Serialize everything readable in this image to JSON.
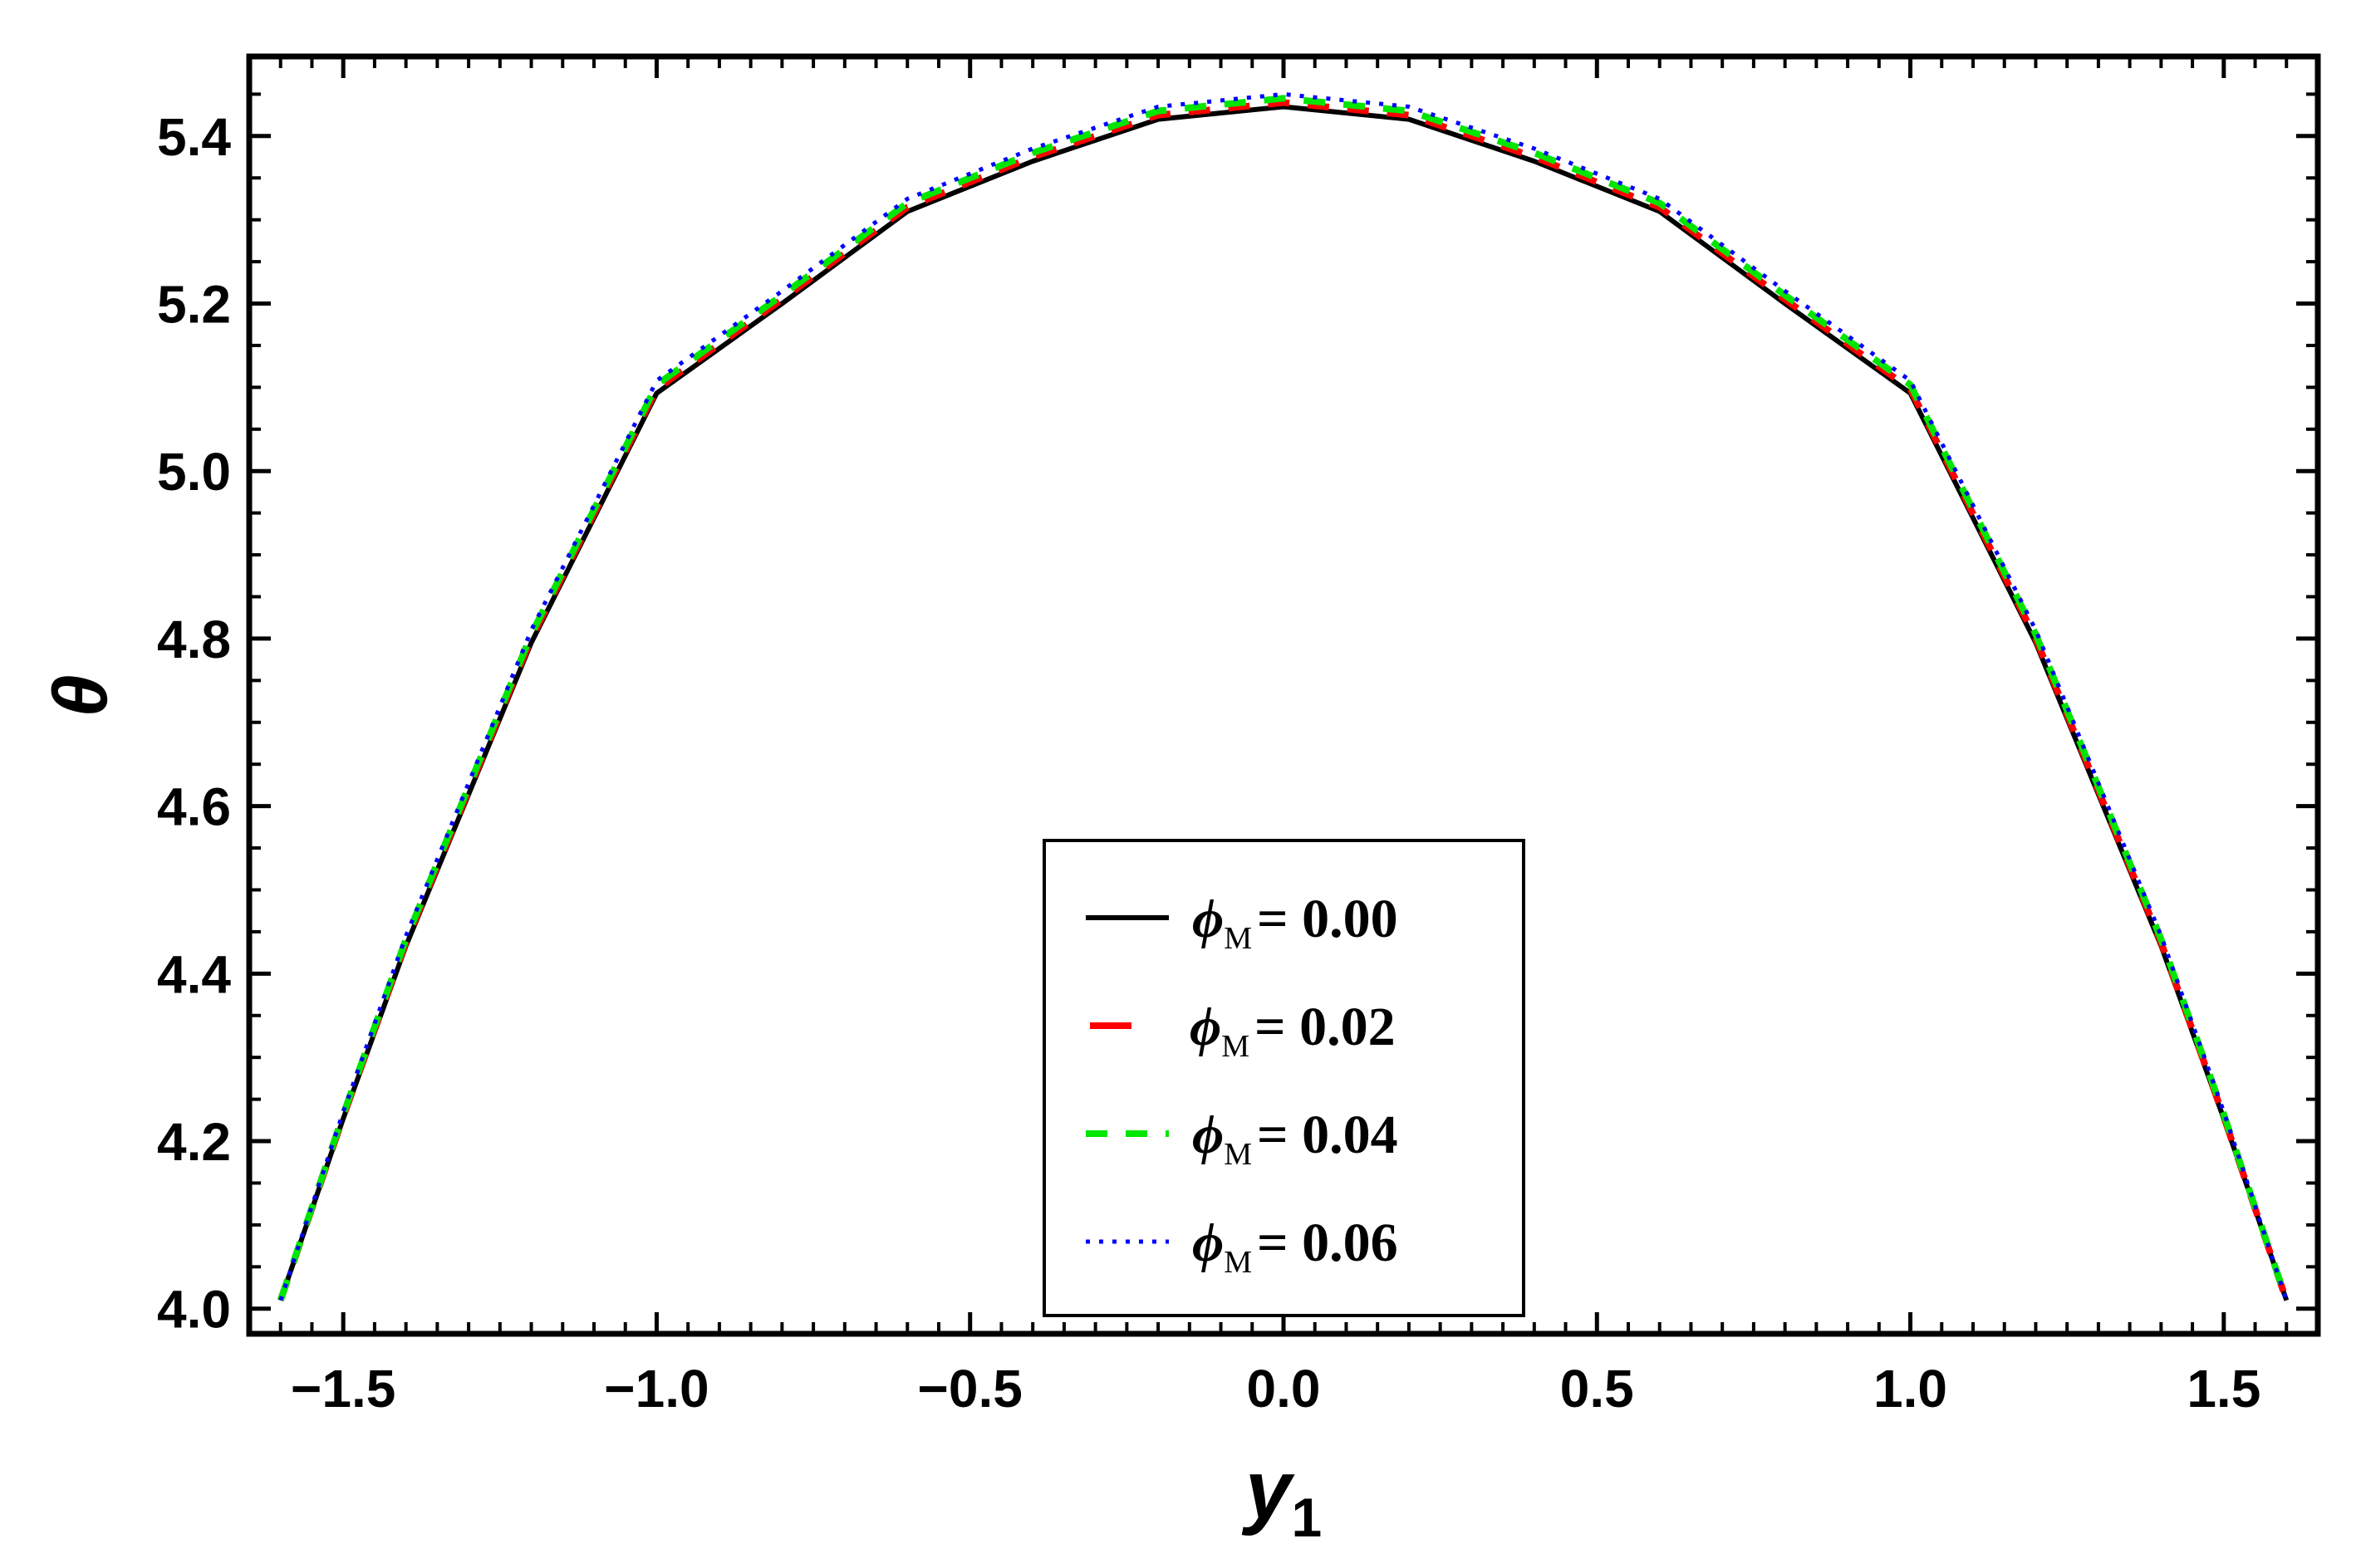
{
  "chart_data": {
    "type": "line",
    "xlabel": "y",
    "xlabel_subscript": "1",
    "ylabel": "θ",
    "xlim": [
      -1.65,
      1.65
    ],
    "ylim": [
      3.97,
      5.495
    ],
    "x_ticks": [
      -1.5,
      -1.0,
      -0.5,
      0.0,
      0.5,
      1.0,
      1.5
    ],
    "x_tick_labels": [
      "−1.5",
      "−1.0",
      "−0.5",
      "0.0",
      "0.5",
      "1.0",
      "1.5"
    ],
    "y_ticks": [
      4.0,
      4.2,
      4.4,
      4.6,
      4.8,
      5.0,
      5.2,
      5.4
    ],
    "y_tick_labels": [
      "4.0",
      "4.2",
      "4.4",
      "4.6",
      "4.8",
      "5.0",
      "5.2",
      "5.4"
    ],
    "grid": false,
    "legend_position": "bottom-center",
    "x": [
      -1.6,
      -1.5,
      -1.4,
      -1.2,
      -1.0,
      -0.8,
      -0.6,
      -0.4,
      -0.2,
      0.0,
      0.2,
      0.4,
      0.6,
      0.8,
      1.0,
      1.2,
      1.4,
      1.5,
      1.6
    ],
    "series": [
      {
        "symbol": "ϕ",
        "subscript": "M",
        "value_label": "= 0.00",
        "color": "#000000",
        "style": "solid",
        "values": [
          4.01,
          4.227,
          4.433,
          4.795,
          5.093,
          5.2,
          5.31,
          5.37,
          5.42,
          5.435,
          5.42,
          5.37,
          5.31,
          5.2,
          5.093,
          4.795,
          4.433,
          4.227,
          4.01
        ]
      },
      {
        "symbol": "ϕ",
        "subscript": "M",
        "value_label": "= 0.02",
        "color": "#ff0000",
        "style": "dashed",
        "values": [
          4.01,
          4.229,
          4.437,
          4.8,
          5.098,
          5.205,
          5.315,
          5.375,
          5.425,
          5.44,
          5.425,
          5.375,
          5.315,
          5.205,
          5.098,
          4.8,
          4.437,
          4.229,
          4.01
        ]
      },
      {
        "symbol": "ϕ",
        "subscript": "M",
        "value_label": "= 0.04",
        "color": "#00e600",
        "style": "dashed",
        "values": [
          4.01,
          4.232,
          4.441,
          4.805,
          5.103,
          5.21,
          5.32,
          5.38,
          5.43,
          5.445,
          5.43,
          5.38,
          5.32,
          5.21,
          5.103,
          4.805,
          4.441,
          4.232,
          4.01
        ]
      },
      {
        "symbol": "ϕ",
        "subscript": "M",
        "value_label": "= 0.06",
        "color": "#0000ff",
        "style": "dotted",
        "values": [
          4.01,
          4.235,
          4.445,
          4.81,
          5.108,
          5.215,
          5.325,
          5.385,
          5.435,
          5.45,
          5.435,
          5.385,
          5.325,
          5.215,
          5.108,
          4.81,
          4.445,
          4.235,
          4.01
        ]
      }
    ]
  }
}
